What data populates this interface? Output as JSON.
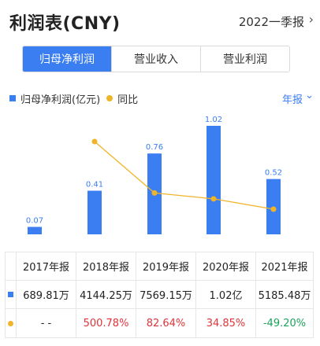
{
  "header": {
    "title": "利润表(CNY)",
    "period": "2022一季报",
    "chevron_icon": "chevron-right-icon"
  },
  "tabs": [
    {
      "label": "归母净利润",
      "active": true
    },
    {
      "label": "营业收入",
      "active": false
    },
    {
      "label": "营业利润",
      "active": false
    }
  ],
  "legend": {
    "bar_label": "归母净利润(亿元)",
    "line_label": "同比"
  },
  "range_select": {
    "label": "年报",
    "chevron_icon": "chevron-down-icon"
  },
  "colors": {
    "bar": "#3a7ef2",
    "line": "#f0b429",
    "positive": "#e0343a",
    "negative": "#1aa35b"
  },
  "chart_data": {
    "type": "bar",
    "categories": [
      "2017年报",
      "2018年报",
      "2019年报",
      "2020年报",
      "2021年报"
    ],
    "series": [
      {
        "name": "归母净利润(亿元)",
        "values": [
          0.07,
          0.41,
          0.76,
          1.02,
          0.52
        ],
        "labels": [
          "0.07",
          "0.41",
          "0.76",
          "1.02",
          "0.52"
        ]
      },
      {
        "name": "同比",
        "type": "line",
        "values": [
          null,
          500.78,
          82.64,
          34.85,
          -49.2
        ]
      }
    ]
  },
  "table": {
    "headers": [
      "2017年报",
      "2018年报",
      "2019年报",
      "2020年报",
      "2021年报"
    ],
    "profit_row": [
      "689.81万",
      "4144.25万",
      "7569.15万",
      "1.02亿",
      "5185.48万"
    ],
    "yoy_row": [
      "- -",
      "500.78%",
      "82.64%",
      "34.85%",
      "-49.20%"
    ]
  }
}
